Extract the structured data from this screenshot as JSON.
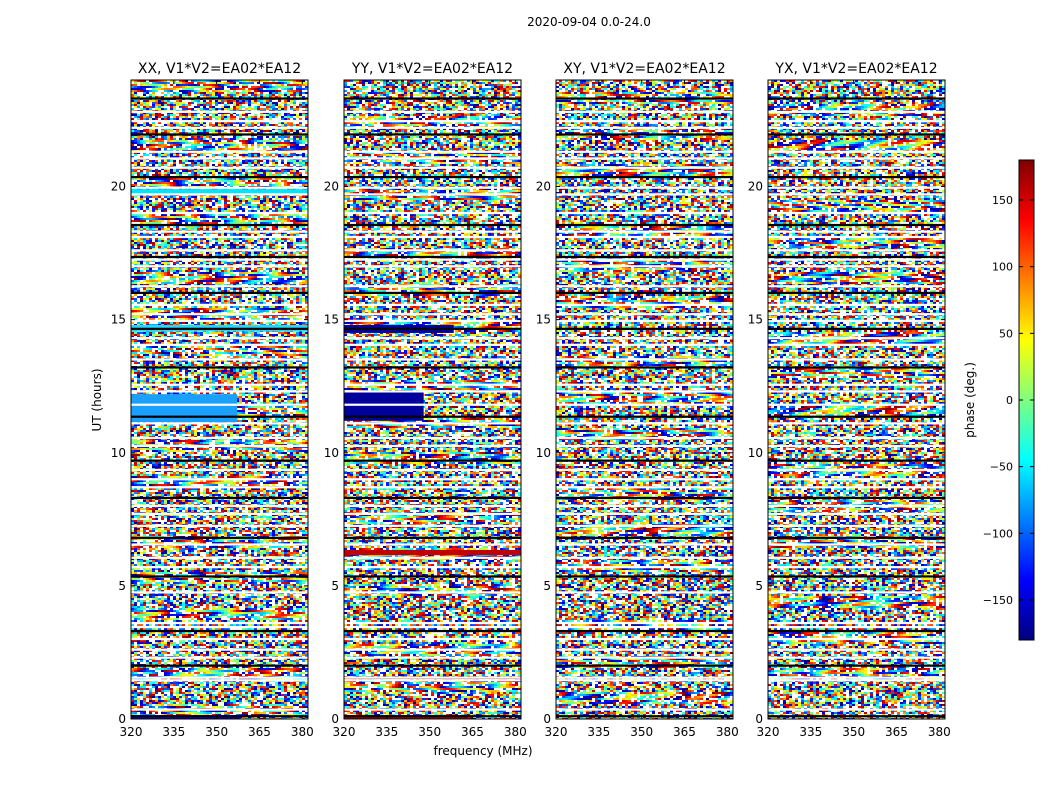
{
  "chart_data": {
    "type": "heatmap",
    "suptitle": "2020-09-04 0.0-24.0",
    "xlabel": "frequency (MHz)",
    "ylabel": "UT (hours)",
    "xlim": [
      320,
      382
    ],
    "ylim": [
      0,
      24
    ],
    "xticks": [
      320,
      335,
      350,
      365,
      380
    ],
    "yticks": [
      0,
      5,
      10,
      15,
      20
    ],
    "colorbar": {
      "label": "phase (deg.)",
      "range": [
        -180,
        180
      ],
      "ticks": [
        150,
        100,
        50,
        0,
        -50,
        -100,
        -150
      ],
      "colormap": [
        "#00007f",
        "#0000ff",
        "#007fff",
        "#00ffff",
        "#7fff7f",
        "#ffff00",
        "#ff7f00",
        "#ff0000",
        "#7f0000"
      ]
    },
    "panels": [
      {
        "title": "XX, V1*V2=EA02*EA12",
        "product": "XX"
      },
      {
        "title": "YY, V1*V2=EA02*EA12",
        "product": "YY"
      },
      {
        "title": "XY, V1*V2=EA02*EA12",
        "product": "XY"
      },
      {
        "title": "YX, V1*V2=EA02*EA12",
        "product": "YX"
      }
    ],
    "flagged_ut_hours": [
      0.1,
      0.35,
      1.45,
      1.55,
      2.0,
      2.3,
      2.6,
      3.0,
      3.3,
      3.45,
      3.6,
      4.75,
      5.35,
      5.7,
      6.05,
      6.55,
      6.8,
      7.25,
      7.7,
      8.0,
      8.3,
      8.7,
      9.0,
      9.35,
      9.7,
      10.25,
      10.55,
      11.1,
      11.35,
      11.8,
      12.3,
      12.55,
      13.2,
      13.5,
      14.05,
      14.3,
      14.65,
      14.95,
      15.2,
      15.55,
      16.0,
      16.25,
      17.0,
      17.25,
      17.35,
      17.6,
      18.1,
      18.3,
      18.55,
      19.0,
      19.7,
      19.95,
      20.35,
      20.7,
      21.05,
      21.3,
      21.95,
      22.2,
      22.45,
      22.8,
      23.3
    ]
  }
}
